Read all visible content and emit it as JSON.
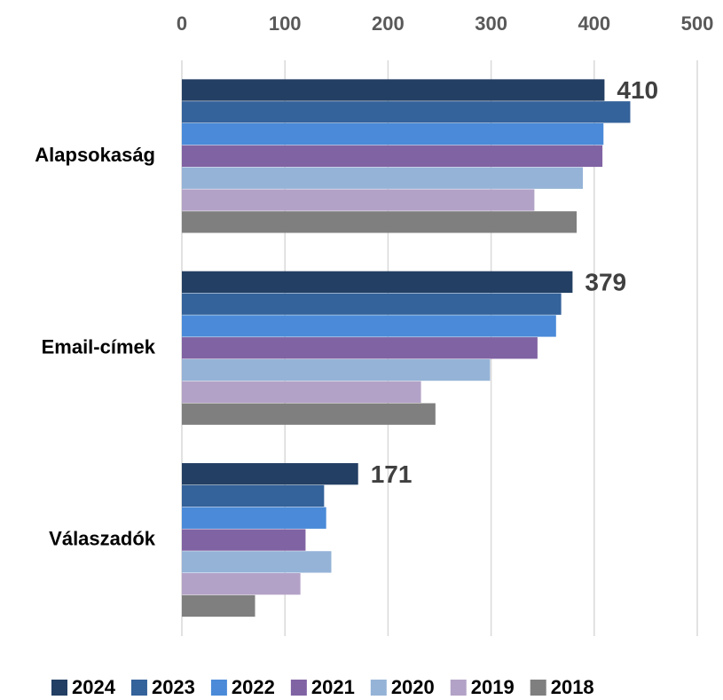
{
  "chart_data": {
    "type": "bar",
    "orientation": "horizontal",
    "categories": [
      "Alapsokaság",
      "Email-címek",
      "Válaszadók"
    ],
    "series": [
      {
        "name": "2024",
        "color": "#233f63",
        "values": [
          410,
          379,
          171
        ],
        "show_labels": true
      },
      {
        "name": "2023",
        "color": "#34629a",
        "values": [
          435,
          368,
          138
        ]
      },
      {
        "name": "2022",
        "color": "#4a8ad8",
        "values": [
          409,
          363,
          140
        ]
      },
      {
        "name": "2021",
        "color": "#8063a3",
        "values": [
          408,
          345,
          120
        ]
      },
      {
        "name": "2020",
        "color": "#95b3d7",
        "values": [
          389,
          299,
          145
        ]
      },
      {
        "name": "2019",
        "color": "#b3a2c7",
        "values": [
          342,
          232,
          115
        ]
      },
      {
        "name": "2018",
        "color": "#7f7f7f",
        "values": [
          383,
          246,
          71
        ]
      }
    ],
    "xlim": [
      0,
      500
    ],
    "xticks": [
      0,
      100,
      200,
      300,
      400,
      500
    ],
    "grid": true,
    "legend": "bottom"
  }
}
